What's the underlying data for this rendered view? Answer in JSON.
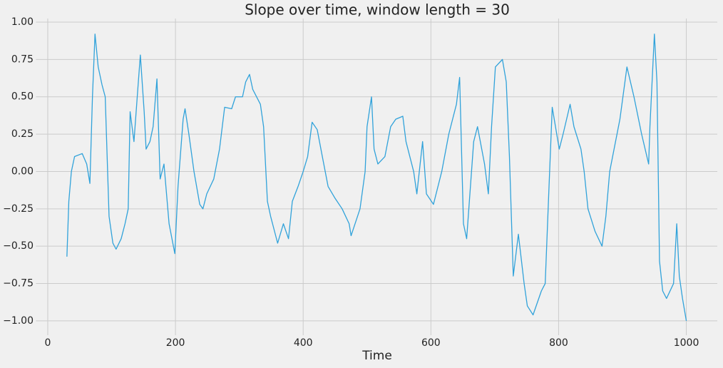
{
  "chart_data": {
    "type": "line",
    "title": "Slope over time, window length = 30",
    "xlabel": "Time",
    "color": "#30a2da",
    "grid": true,
    "x": [
      30,
      33,
      37,
      42,
      54,
      61,
      66,
      70,
      74,
      79,
      85,
      90,
      93,
      96,
      102,
      107,
      115,
      121,
      126,
      129,
      135,
      141,
      145,
      151,
      154,
      160,
      165,
      171,
      176,
      182,
      190,
      199,
      204,
      212,
      215,
      221,
      229,
      238,
      243,
      249,
      260,
      269,
      277,
      288,
      294,
      305,
      310,
      316,
      321,
      333,
      338,
      344,
      349,
      360,
      369,
      377,
      383,
      392,
      400,
      407,
      414,
      422,
      430,
      439,
      450,
      461,
      472,
      475,
      489,
      497,
      500,
      507,
      511,
      517,
      528,
      537,
      545,
      556,
      561,
      573,
      578,
      587,
      593,
      604,
      617,
      628,
      640,
      645,
      651,
      656,
      667,
      673,
      684,
      690,
      695,
      701,
      712,
      718,
      723,
      729,
      737,
      746,
      751,
      760,
      773,
      779,
      785,
      790,
      801,
      807,
      818,
      824,
      835,
      840,
      846,
      857,
      868,
      874,
      880,
      896,
      907,
      918,
      930,
      941,
      943,
      950,
      954,
      958,
      963,
      969,
      980,
      985,
      989,
      994,
      1000
    ],
    "values": [
      -0.57,
      -0.2,
      0.0,
      0.1,
      0.12,
      0.05,
      -0.08,
      0.5,
      0.92,
      0.7,
      0.58,
      0.5,
      0.1,
      -0.3,
      -0.48,
      -0.52,
      -0.45,
      -0.35,
      -0.25,
      0.4,
      0.2,
      0.55,
      0.78,
      0.4,
      0.15,
      0.2,
      0.3,
      0.62,
      -0.05,
      0.05,
      -0.35,
      -0.55,
      -0.1,
      0.35,
      0.42,
      0.25,
      0.0,
      -0.22,
      -0.25,
      -0.15,
      -0.05,
      0.15,
      0.43,
      0.42,
      0.5,
      0.5,
      0.6,
      0.65,
      0.55,
      0.45,
      0.3,
      -0.2,
      -0.3,
      -0.48,
      -0.35,
      -0.45,
      -0.2,
      -0.1,
      0.0,
      0.1,
      0.33,
      0.28,
      0.1,
      -0.1,
      -0.18,
      -0.25,
      -0.35,
      -0.43,
      -0.25,
      0.0,
      0.3,
      0.5,
      0.15,
      0.05,
      0.1,
      0.3,
      0.35,
      0.37,
      0.2,
      0.0,
      -0.15,
      0.2,
      -0.15,
      -0.22,
      0.0,
      0.25,
      0.45,
      0.63,
      -0.35,
      -0.45,
      0.2,
      0.3,
      0.05,
      -0.15,
      0.3,
      0.7,
      0.75,
      0.6,
      0.1,
      -0.7,
      -0.42,
      -0.75,
      -0.9,
      -0.96,
      -0.8,
      -0.75,
      -0.1,
      0.43,
      0.15,
      0.25,
      0.45,
      0.3,
      0.15,
      0.0,
      -0.25,
      -0.4,
      -0.5,
      -0.3,
      0.0,
      0.35,
      0.7,
      0.5,
      0.25,
      0.05,
      0.3,
      0.92,
      0.6,
      -0.6,
      -0.8,
      -0.85,
      -0.75,
      -0.35,
      -0.7,
      -0.85,
      -1.0
    ],
    "xlim": [
      -18.5,
      1048.5
    ],
    "xticks": [
      0,
      200,
      400,
      600,
      800,
      1000
    ],
    "ylim": [
      -1.096,
      1.024
    ],
    "yticks": [
      {
        "value": -1,
        "label": "−1.00"
      },
      {
        "value": -0.75,
        "label": "−0.75"
      },
      {
        "value": -0.5,
        "label": "−0.50"
      },
      {
        "value": -0.25,
        "label": "−0.25"
      },
      {
        "value": 0,
        "label": "0.00"
      },
      {
        "value": 0.25,
        "label": "0.25"
      },
      {
        "value": 0.5,
        "label": "0.50"
      },
      {
        "value": 0.75,
        "label": "0.75"
      },
      {
        "value": 1,
        "label": "1.00"
      }
    ]
  }
}
